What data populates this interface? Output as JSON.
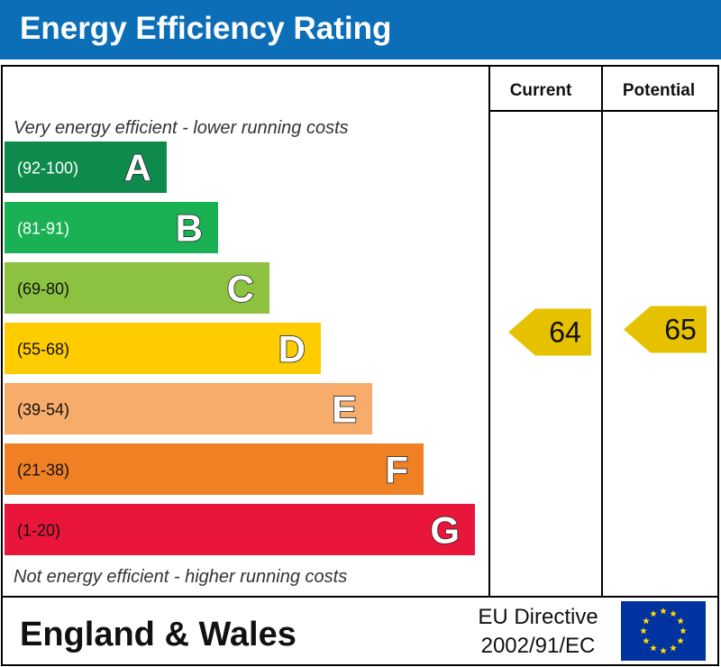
{
  "title": "Energy Efficiency Rating",
  "chart_data": {
    "type": "bar",
    "header": {
      "current": "Current",
      "potential": "Potential"
    },
    "top_note": "Very energy efficient - lower running costs",
    "bottom_note": "Not energy efficient - higher running costs",
    "bands": [
      {
        "letter": "A",
        "range": "(92-100)",
        "color": "#0e8a4d"
      },
      {
        "letter": "B",
        "range": "(81-91)",
        "color": "#1ab154"
      },
      {
        "letter": "C",
        "range": "(69-80)",
        "color": "#8cc23f"
      },
      {
        "letter": "D",
        "range": "(55-68)",
        "color": "#ffcc00"
      },
      {
        "letter": "E",
        "range": "(39-54)",
        "color": "#f7ac6b"
      },
      {
        "letter": "F",
        "range": "(21-38)",
        "color": "#ef8023"
      },
      {
        "letter": "G",
        "range": "(1-20)",
        "color": "#e9153b"
      }
    ],
    "current": 64,
    "potential": 65,
    "indicator_color": "#e5c100"
  },
  "footer": {
    "region": "England & Wales",
    "directive_line1": "EU Directive",
    "directive_line2": "2002/91/EC",
    "eu_flag_color": "#0033a0",
    "eu_star_color": "#ffdd00"
  }
}
